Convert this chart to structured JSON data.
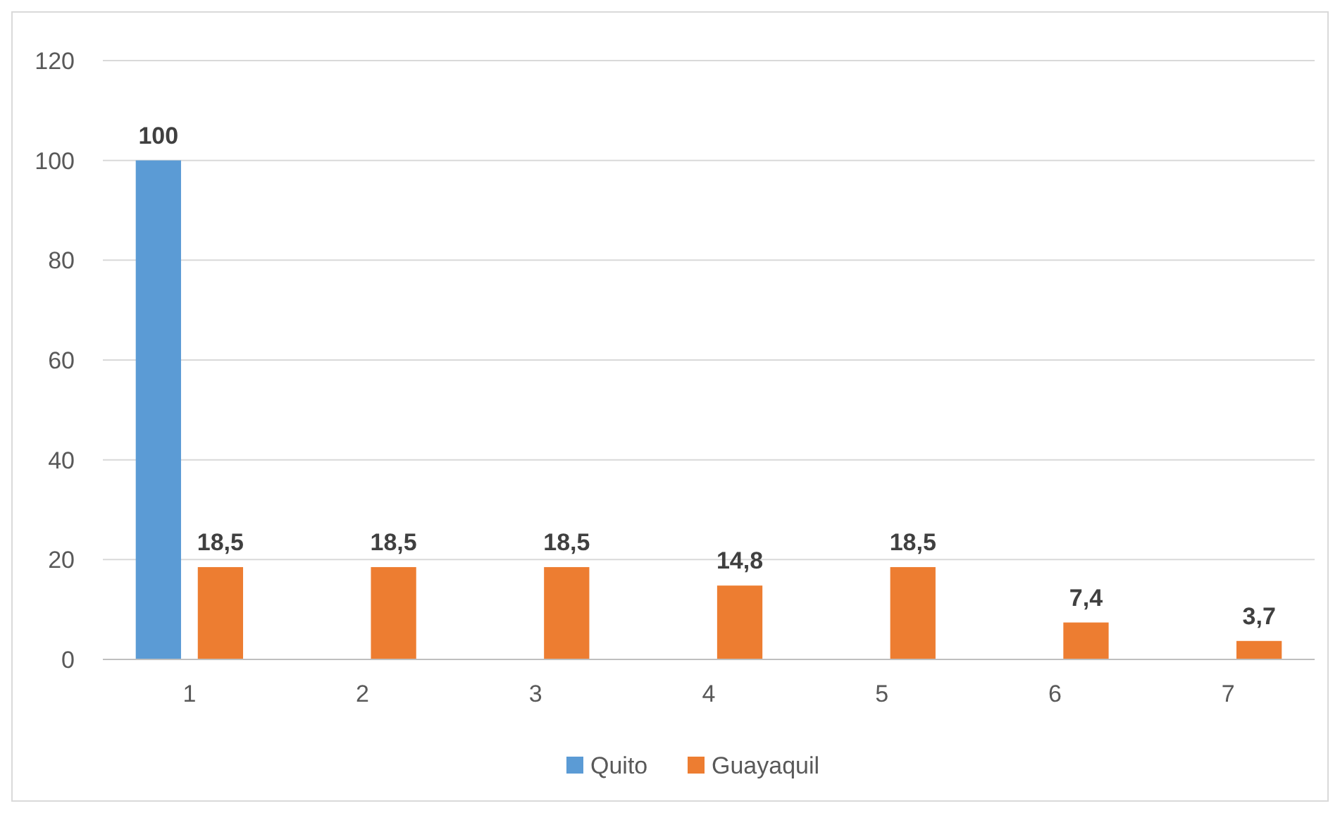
{
  "chart_data": {
    "type": "bar",
    "categories": [
      "1",
      "2",
      "3",
      "4",
      "5",
      "6",
      "7"
    ],
    "series": [
      {
        "name": "Quito",
        "color": "#5b9bd5",
        "values": [
          100,
          null,
          null,
          null,
          null,
          null,
          null
        ],
        "value_labels": [
          "100",
          null,
          null,
          null,
          null,
          null,
          null
        ]
      },
      {
        "name": "Guayaquil",
        "color": "#ed7d31",
        "values": [
          18.5,
          18.5,
          18.5,
          14.8,
          18.5,
          7.4,
          3.7
        ],
        "value_labels": [
          "18,5",
          "18,5",
          "18,5",
          "14,8",
          "18,5",
          "7,4",
          "3,7"
        ]
      }
    ],
    "ylim": [
      0,
      120
    ],
    "yticks": [
      0,
      20,
      40,
      60,
      80,
      100,
      120
    ],
    "grid": "y",
    "legend": "bottom"
  }
}
